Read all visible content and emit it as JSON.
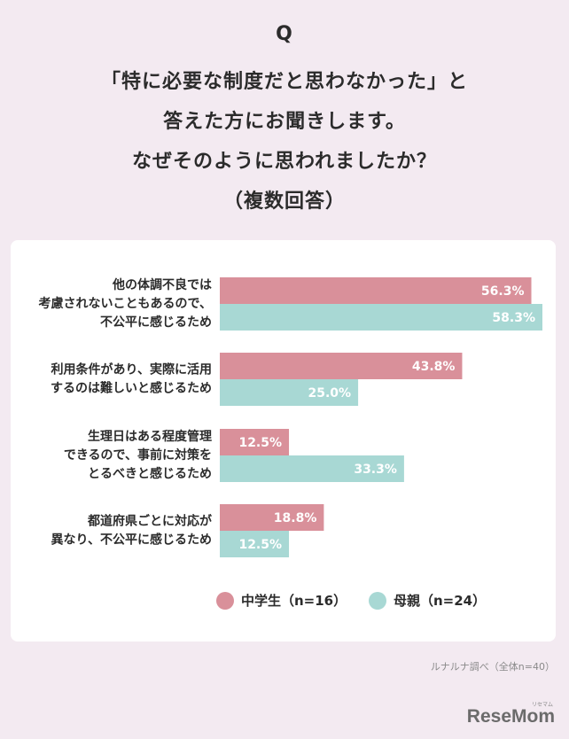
{
  "header": {
    "q_mark": "Q",
    "question_lines": [
      "「特に必要な制度だと思わなかった」と",
      "答えた方にお聞きします。",
      "なぜそのように思われましたか？",
      "（複数回答）"
    ]
  },
  "chart_data": {
    "type": "bar",
    "orientation": "horizontal",
    "categories": [
      [
        "他の体調不良では",
        "考慮されないこともあるので、",
        "不公平に感じるため"
      ],
      [
        "利用条件があり、実際に活用",
        "するのは難しいと感じるため"
      ],
      [
        "生理日はある程度管理",
        "できるので、事前に対策を",
        "とるべきと感じるため"
      ],
      [
        "都道府県ごとに対応が",
        "異なり、不公平に感じるため"
      ]
    ],
    "series": [
      {
        "name": "中学生（n=16）",
        "color": "#d9909a",
        "values": [
          56.3,
          43.8,
          12.5,
          18.8
        ],
        "labels": [
          "56.3%",
          "43.8%",
          "12.5%",
          "18.8%"
        ]
      },
      {
        "name": "母親（n=24）",
        "color": "#a8d8d4",
        "values": [
          58.3,
          25.0,
          33.3,
          12.5
        ],
        "labels": [
          "58.3%",
          "25.0%",
          "33.3%",
          "12.5%"
        ]
      }
    ],
    "xlim": [
      0,
      58.3
    ],
    "grid": false,
    "legend_position": "bottom"
  },
  "footer": {
    "source": "ルナルナ調べ（全体n=40）",
    "brand": "ReseMom",
    "brand_kana": "リセマム"
  }
}
